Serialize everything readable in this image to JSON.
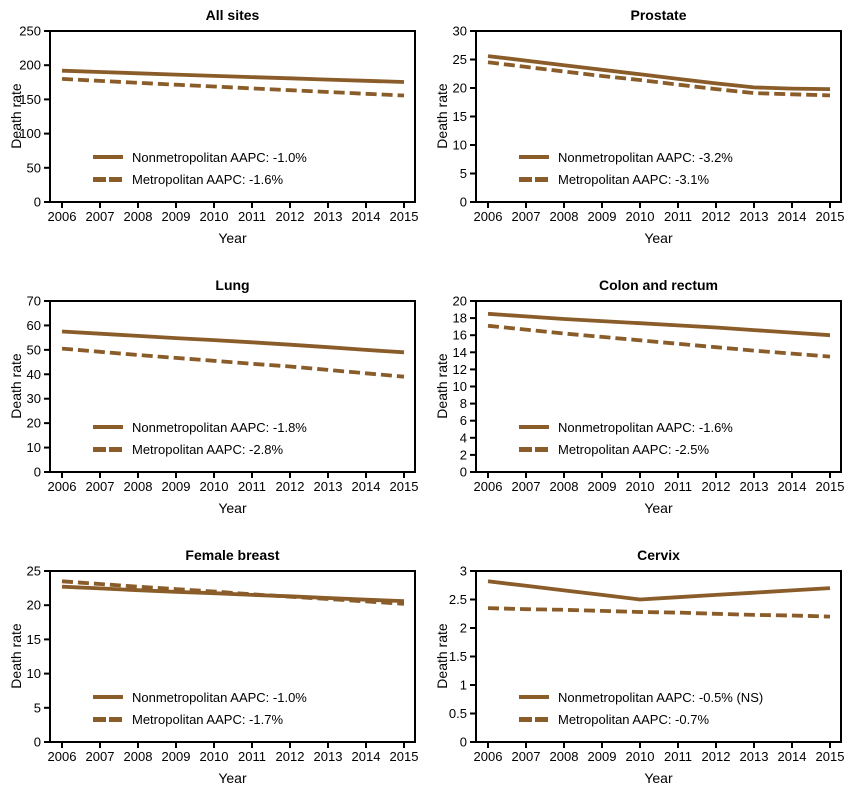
{
  "colors": {
    "line": "#8a5c29",
    "axis": "#000000",
    "text": "#000000"
  },
  "years": [
    2006,
    2007,
    2008,
    2009,
    2010,
    2011,
    2012,
    2013,
    2014,
    2015
  ],
  "chart_data": [
    {
      "id": "all-sites",
      "type": "line",
      "title": "All sites",
      "xlabel": "Year",
      "ylabel": "Death rate",
      "ylim": [
        0,
        250
      ],
      "yticks": [
        0,
        50,
        100,
        150,
        200,
        250
      ],
      "grid": false,
      "legend_position": "lower-left-inside",
      "series": [
        {
          "name": "Nonmetropolitan",
          "label": "Nonmetropolitan AAPC: -1.0%",
          "aapc": "-1.0%",
          "style": "solid",
          "values": [
            192.0,
            190.1,
            188.2,
            186.3,
            184.4,
            182.6,
            180.8,
            179.0,
            177.2,
            175.4
          ]
        },
        {
          "name": "Metropolitan",
          "label": "Metropolitan AAPC: -1.6%",
          "aapc": "-1.6%",
          "style": "dashed",
          "values": [
            180.0,
            177.1,
            174.3,
            171.5,
            168.8,
            166.1,
            163.4,
            160.8,
            158.2,
            155.7
          ]
        }
      ]
    },
    {
      "id": "prostate",
      "type": "line",
      "title": "Prostate",
      "xlabel": "Year",
      "ylabel": "Death rate",
      "ylim": [
        0,
        30
      ],
      "yticks": [
        0,
        5,
        10,
        15,
        20,
        25,
        30
      ],
      "grid": false,
      "legend_position": "lower-left-inside",
      "series": [
        {
          "name": "Nonmetropolitan",
          "label": "Nonmetropolitan AAPC: -3.2%",
          "aapc": "-3.2%",
          "style": "solid",
          "values": [
            25.6,
            24.8,
            24.0,
            23.2,
            22.4,
            21.6,
            20.8,
            20.1,
            19.9,
            19.8
          ]
        },
        {
          "name": "Metropolitan",
          "label": "Metropolitan AAPC: -3.1%",
          "aapc": "-3.1%",
          "style": "dashed",
          "values": [
            24.5,
            23.7,
            22.9,
            22.1,
            21.4,
            20.6,
            19.8,
            19.1,
            18.9,
            18.7
          ]
        }
      ]
    },
    {
      "id": "lung",
      "type": "line",
      "title": "Lung",
      "xlabel": "Year",
      "ylabel": "Death rate",
      "ylim": [
        0,
        70
      ],
      "yticks": [
        0,
        10,
        20,
        30,
        40,
        50,
        60,
        70
      ],
      "grid": false,
      "legend_position": "lower-left-inside",
      "series": [
        {
          "name": "Nonmetropolitan",
          "label": "Nonmetropolitan AAPC: -1.8%",
          "aapc": "-1.8%",
          "style": "solid",
          "values": [
            57.5,
            56.6,
            55.7,
            54.8,
            54.0,
            53.1,
            52.1,
            51.1,
            50.0,
            49.0
          ]
        },
        {
          "name": "Metropolitan",
          "label": "Metropolitan AAPC: -2.8%",
          "aapc": "-2.8%",
          "style": "dashed",
          "values": [
            50.5,
            49.2,
            47.9,
            46.7,
            45.5,
            44.3,
            43.2,
            41.8,
            40.4,
            39.0
          ]
        }
      ]
    },
    {
      "id": "colon-and-rectum",
      "type": "line",
      "title": "Colon and rectum",
      "xlabel": "Year",
      "ylabel": "Death rate",
      "ylim": [
        0,
        20
      ],
      "yticks": [
        0,
        2,
        4,
        6,
        8,
        10,
        12,
        14,
        16,
        18,
        20
      ],
      "grid": false,
      "legend_position": "lower-left-inside",
      "series": [
        {
          "name": "Nonmetropolitan",
          "label": "Nonmetropolitan AAPC: -1.6%",
          "aapc": "-1.6%",
          "style": "solid",
          "values": [
            18.5,
            18.2,
            17.9,
            17.65,
            17.4,
            17.15,
            16.9,
            16.6,
            16.3,
            16.0
          ]
        },
        {
          "name": "Metropolitan",
          "label": "Metropolitan AAPC: -2.5%",
          "aapc": "-2.5%",
          "style": "dashed",
          "values": [
            17.1,
            16.65,
            16.2,
            15.8,
            15.4,
            15.0,
            14.6,
            14.2,
            13.85,
            13.5
          ]
        }
      ]
    },
    {
      "id": "female-breast",
      "type": "line",
      "title": "Female breast",
      "xlabel": "Year",
      "ylabel": "Death rate",
      "ylim": [
        0,
        25
      ],
      "yticks": [
        0,
        5,
        10,
        15,
        20,
        25
      ],
      "grid": false,
      "legend_position": "lower-left-inside",
      "series": [
        {
          "name": "Nonmetropolitan",
          "label": "Nonmetropolitan AAPC: -1.0%",
          "aapc": "-1.0%",
          "style": "solid",
          "values": [
            22.7,
            22.45,
            22.2,
            21.95,
            21.75,
            21.5,
            21.3,
            21.05,
            20.8,
            20.6
          ]
        },
        {
          "name": "Metropolitan",
          "label": "Metropolitan AAPC: -1.7%",
          "aapc": "-1.7%",
          "style": "dashed",
          "values": [
            23.5,
            23.1,
            22.7,
            22.35,
            22.0,
            21.6,
            21.25,
            20.9,
            20.55,
            20.2
          ]
        }
      ]
    },
    {
      "id": "cervix",
      "type": "line",
      "title": "Cervix",
      "xlabel": "Year",
      "ylabel": "Death rate",
      "ylim": [
        0,
        3
      ],
      "yticks": [
        0,
        0.5,
        1,
        1.5,
        2,
        2.5,
        3
      ],
      "grid": false,
      "legend_position": "lower-left-inside",
      "series": [
        {
          "name": "Nonmetropolitan",
          "label": "Nonmetropolitan AAPC: -0.5% (NS)",
          "aapc": "-0.5% (NS)",
          "style": "solid",
          "values": [
            2.82,
            2.74,
            2.66,
            2.58,
            2.5,
            2.54,
            2.58,
            2.62,
            2.66,
            2.7
          ]
        },
        {
          "name": "Metropolitan",
          "label": "Metropolitan AAPC: -0.7%",
          "aapc": "-0.7%",
          "style": "dashed",
          "values": [
            2.35,
            2.33,
            2.32,
            2.3,
            2.28,
            2.27,
            2.25,
            2.23,
            2.22,
            2.2
          ]
        }
      ]
    }
  ]
}
